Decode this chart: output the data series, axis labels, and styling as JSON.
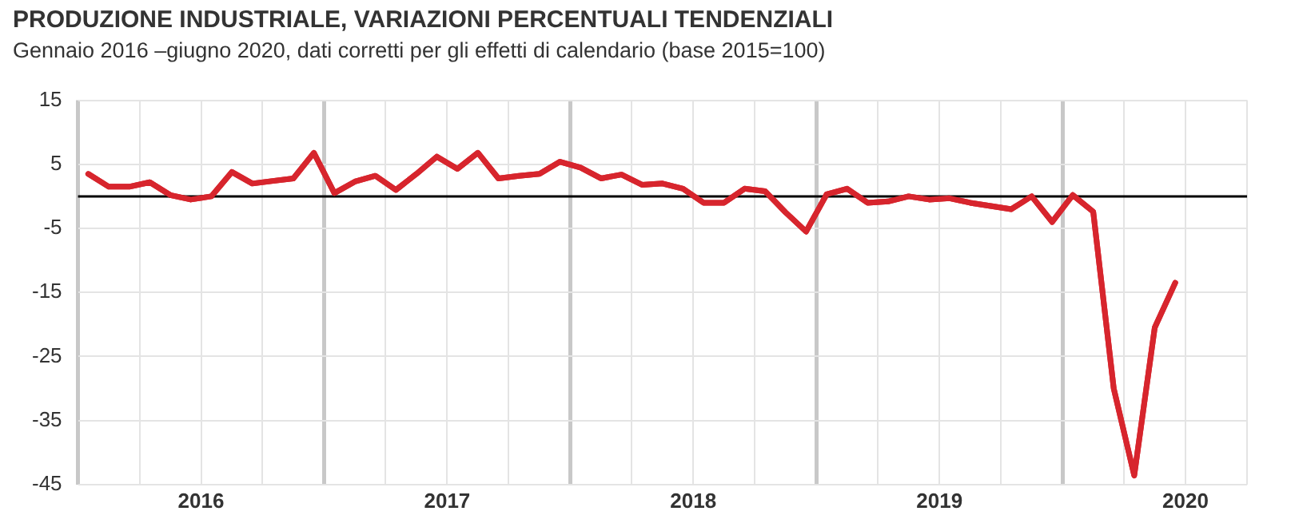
{
  "chart_data": {
    "type": "line",
    "title": "PRODUZIONE INDUSTRIALE, VARIAZIONI PERCENTUALI TENDENZIALI",
    "subtitle": "Gennaio 2016 –giugno 2020, dati corretti per gli effetti di calendario (base 2015=100)",
    "x": [
      "2016-01",
      "2016-02",
      "2016-03",
      "2016-04",
      "2016-05",
      "2016-06",
      "2016-07",
      "2016-08",
      "2016-09",
      "2016-10",
      "2016-11",
      "2016-12",
      "2017-01",
      "2017-02",
      "2017-03",
      "2017-04",
      "2017-05",
      "2017-06",
      "2017-07",
      "2017-08",
      "2017-09",
      "2017-10",
      "2017-11",
      "2017-12",
      "2018-01",
      "2018-02",
      "2018-03",
      "2018-04",
      "2018-05",
      "2018-06",
      "2018-07",
      "2018-08",
      "2018-09",
      "2018-10",
      "2018-11",
      "2018-12",
      "2019-01",
      "2019-02",
      "2019-03",
      "2019-04",
      "2019-05",
      "2019-06",
      "2019-07",
      "2019-08",
      "2019-09",
      "2019-10",
      "2019-11",
      "2019-12",
      "2020-01",
      "2020-02",
      "2020-03",
      "2020-04",
      "2020-05",
      "2020-06"
    ],
    "series": [
      {
        "color": "#d7252d",
        "values": [
          3.5,
          1.5,
          1.5,
          2.2,
          0.2,
          -0.5,
          0,
          3.8,
          2,
          2.4,
          2.8,
          6.8,
          0.5,
          2.3,
          3.2,
          1,
          3.5,
          6.2,
          4.3,
          6.8,
          2.8,
          3.2,
          3.5,
          5.4,
          4.5,
          2.8,
          3.4,
          1.8,
          2,
          1.2,
          -1,
          -1,
          1.2,
          0.8,
          -2.5,
          -5.5,
          0.3,
          1.2,
          -1,
          -0.8,
          0,
          -0.5,
          -0.3,
          -1,
          -1.5,
          -2,
          0,
          -4,
          0.2,
          -2.4,
          -30,
          -43.6,
          -20.5,
          -13.5
        ]
      }
    ],
    "xlim": [
      "2015-12-16",
      "2020-09-16"
    ],
    "xticks": [
      {
        "value": "2015-12-16",
        "label": null
      },
      {
        "value": "2016-03-16",
        "label": null
      },
      {
        "value": "2016-06-16",
        "label": "2016"
      },
      {
        "value": "2016-09-16",
        "label": null
      },
      {
        "value": "2016-12-16",
        "label": null
      },
      {
        "value": "2017-03-16",
        "label": null
      },
      {
        "value": "2017-06-16",
        "label": "2017"
      },
      {
        "value": "2017-09-16",
        "label": null
      },
      {
        "value": "2017-12-16",
        "label": null
      },
      {
        "value": "2018-03-16",
        "label": null
      },
      {
        "value": "2018-06-16",
        "label": "2018"
      },
      {
        "value": "2018-09-16",
        "label": null
      },
      {
        "value": "2018-12-16",
        "label": null
      },
      {
        "value": "2019-03-16",
        "label": null
      },
      {
        "value": "2019-06-16",
        "label": "2019"
      },
      {
        "value": "2019-09-16",
        "label": null
      },
      {
        "value": "2019-12-16",
        "label": null
      },
      {
        "value": "2020-03-16",
        "label": null
      },
      {
        "value": "2020-06-16",
        "label": "2020"
      },
      {
        "value": "2020-09-16",
        "label": null
      }
    ],
    "ylim": [
      -45,
      15
    ],
    "yticks": [
      -45,
      -35,
      -25,
      -15,
      -5,
      5,
      15
    ],
    "ref_lines": [
      {
        "axis": "y",
        "value": 0,
        "color": "#000000"
      }
    ],
    "grid": true,
    "marker": "none",
    "line_style": "solid",
    "legend": false
  }
}
